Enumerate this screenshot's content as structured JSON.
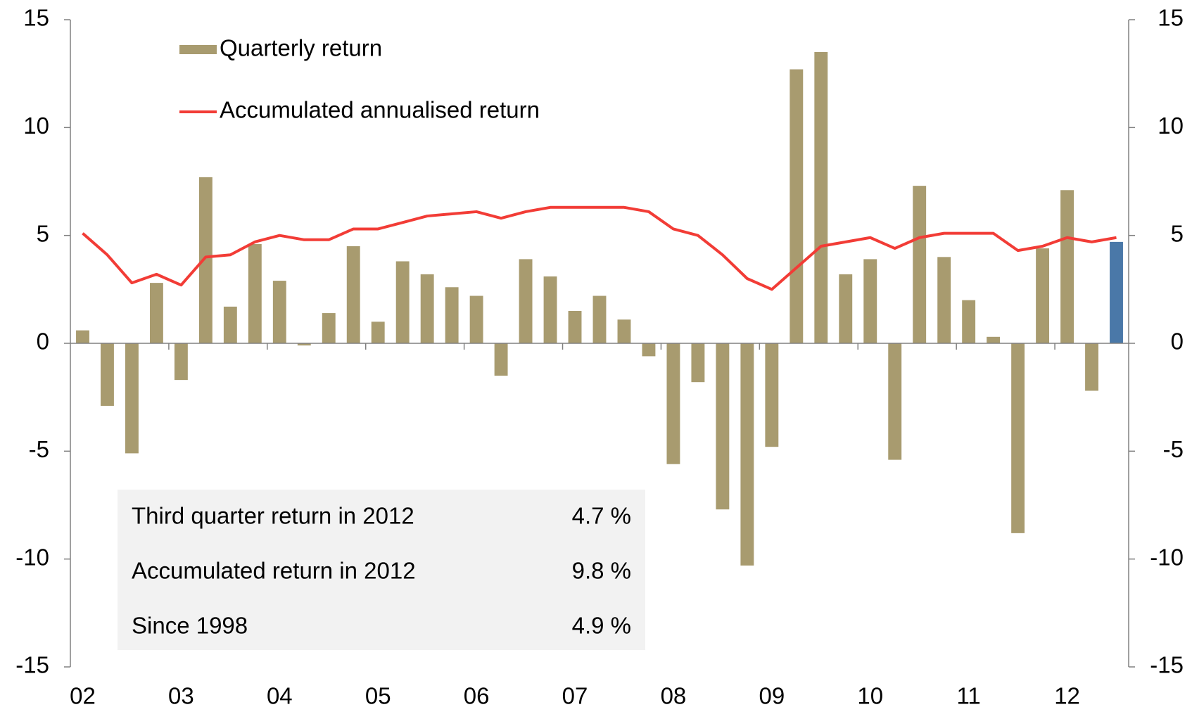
{
  "chart_data": {
    "type": "bar_line",
    "categories": [
      "02",
      null,
      null,
      null,
      "03",
      null,
      null,
      null,
      "04",
      null,
      null,
      null,
      "05",
      null,
      null,
      null,
      "06",
      null,
      null,
      null,
      "07",
      null,
      null,
      null,
      "08",
      null,
      null,
      null,
      "09",
      null,
      null,
      null,
      "10",
      null,
      null,
      null,
      "11",
      null,
      null,
      null,
      "12",
      null,
      null
    ],
    "series": [
      {
        "name": "Quarterly return",
        "type": "bar",
        "color": "#a89b6f",
        "colors": [
          "#a89b6f",
          "#a89b6f",
          "#a89b6f",
          "#a89b6f",
          "#a89b6f",
          "#a89b6f",
          "#a89b6f",
          "#a89b6f",
          "#a89b6f",
          "#a89b6f",
          "#a89b6f",
          "#a89b6f",
          "#a89b6f",
          "#a89b6f",
          "#a89b6f",
          "#a89b6f",
          "#a89b6f",
          "#a89b6f",
          "#a89b6f",
          "#a89b6f",
          "#a89b6f",
          "#a89b6f",
          "#a89b6f",
          "#a89b6f",
          "#a89b6f",
          "#a89b6f",
          "#a89b6f",
          "#a89b6f",
          "#a89b6f",
          "#a89b6f",
          "#a89b6f",
          "#a89b6f",
          "#a89b6f",
          "#a89b6f",
          "#a89b6f",
          "#a89b6f",
          "#a89b6f",
          "#a89b6f",
          "#a89b6f",
          "#a89b6f",
          "#a89b6f",
          "#a89b6f",
          "#4a78a8"
        ],
        "values": [
          0.6,
          -2.9,
          -5.1,
          2.8,
          -1.7,
          7.7,
          1.7,
          4.6,
          2.9,
          -0.1,
          1.4,
          4.5,
          1.0,
          3.8,
          3.2,
          2.6,
          2.2,
          -1.5,
          3.9,
          3.1,
          1.5,
          2.2,
          1.1,
          -0.6,
          -5.6,
          -1.8,
          -7.7,
          -10.3,
          -4.8,
          12.7,
          13.5,
          3.2,
          3.9,
          -5.4,
          7.3,
          4.0,
          2.0,
          0.3,
          -8.8,
          4.4,
          7.1,
          -2.2,
          4.7
        ]
      },
      {
        "name": "Accumulated annualised return",
        "type": "line",
        "color": "#f23c36",
        "values": [
          5.1,
          4.1,
          2.8,
          3.2,
          2.7,
          4.0,
          4.1,
          4.7,
          5.0,
          4.8,
          4.8,
          5.3,
          5.3,
          5.6,
          5.9,
          6.0,
          6.1,
          5.8,
          6.1,
          6.3,
          6.3,
          6.3,
          6.3,
          6.1,
          5.3,
          5.0,
          4.1,
          3.0,
          2.5,
          3.5,
          4.5,
          4.7,
          4.9,
          4.4,
          4.9,
          5.1,
          5.1,
          5.1,
          4.3,
          4.5,
          4.9,
          4.7,
          4.9
        ]
      }
    ],
    "ylim": [
      -15,
      15
    ],
    "yticks": [
      -15,
      -10,
      -5,
      0,
      5,
      10,
      15
    ],
    "y2lim": [
      -15,
      15
    ],
    "y2ticks": [
      -15,
      -10,
      -5,
      0,
      5,
      10,
      15
    ],
    "legend": "top-left",
    "annotation_table": [
      [
        "Third quarter return in 2012",
        "4.7 %"
      ],
      [
        "Accumulated return in 2012",
        "9.8 %"
      ],
      [
        "Since 1998",
        "4.9 %"
      ]
    ]
  }
}
